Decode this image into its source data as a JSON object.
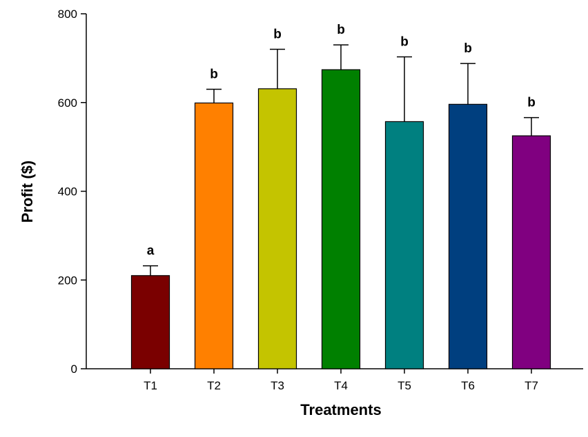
{
  "chart_data": {
    "type": "bar",
    "title": "",
    "xlabel": "Treatments",
    "ylabel": "Profit ($)",
    "ylim": [
      0,
      800
    ],
    "yticks": [
      0,
      200,
      400,
      600,
      800
    ],
    "grid": false,
    "categories": [
      "T1",
      "T2",
      "T3",
      "T4",
      "T5",
      "T6",
      "T7"
    ],
    "values": [
      210,
      599,
      631,
      674,
      557,
      596,
      525
    ],
    "error_upper": [
      232,
      630,
      720,
      730,
      703,
      688,
      566
    ],
    "significance_labels": [
      "a",
      "b",
      "b",
      "b",
      "b",
      "b",
      "b"
    ],
    "colors": [
      "#7a0000",
      "#ff8000",
      "#c4c400",
      "#008000",
      "#008080",
      "#003f7f",
      "#800080"
    ]
  }
}
